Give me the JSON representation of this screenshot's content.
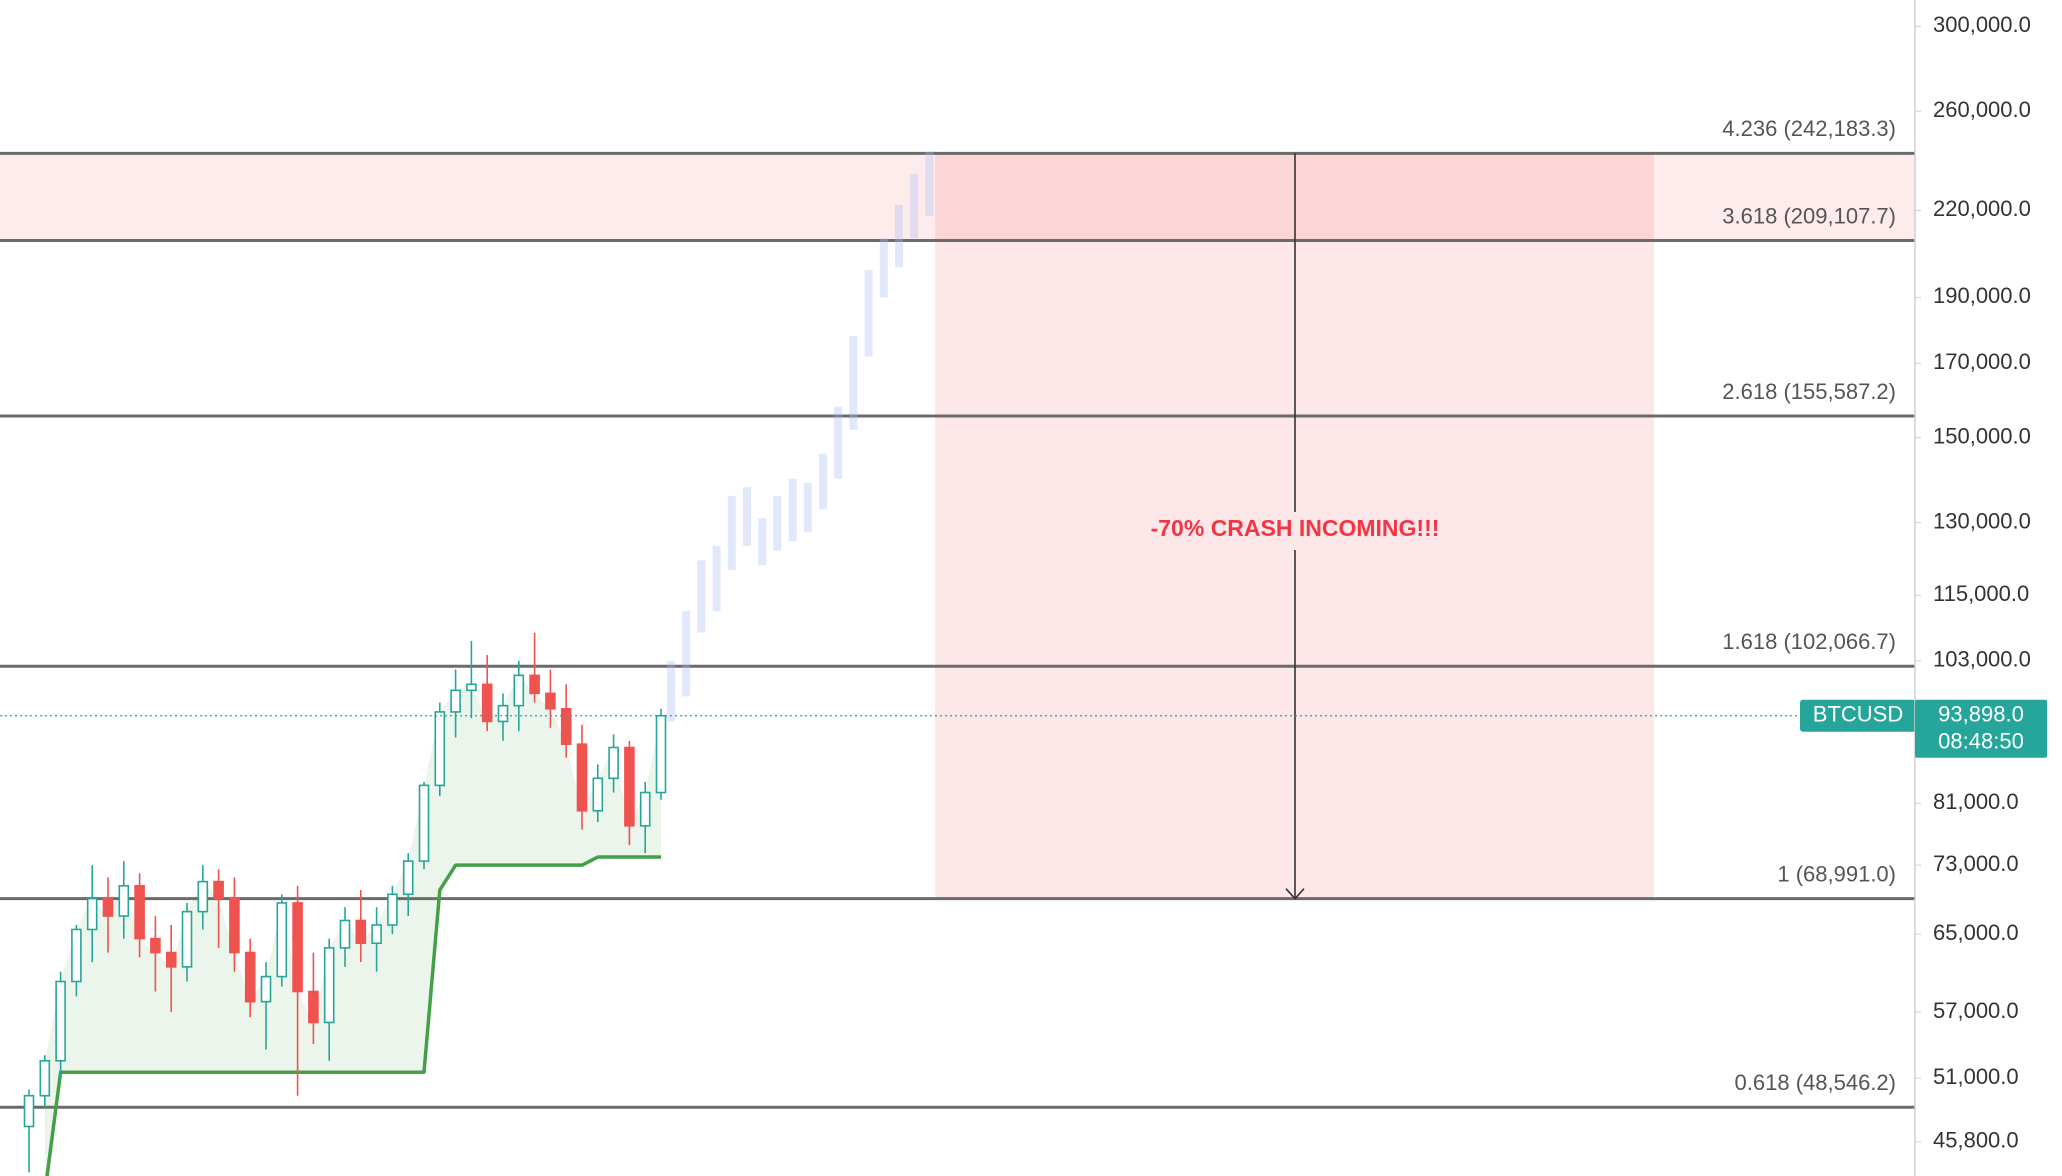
{
  "chart_data": {
    "type": "candlestick",
    "scale": "log",
    "symbol": "BTCUSD",
    "countdown": "08:48:50",
    "last_price": {
      "value": 93898.0,
      "label": "93,898.0"
    },
    "annotation": "-70% CRASH INCOMING!!!",
    "ylim": [
      43236,
      313600
    ],
    "yticks": [
      {
        "value": 300000,
        "label": "300,000.0"
      },
      {
        "value": 260000,
        "label": "260,000.0"
      },
      {
        "value": 220000,
        "label": "220,000.0"
      },
      {
        "value": 190000,
        "label": "190,000.0"
      },
      {
        "value": 170000,
        "label": "170,000.0"
      },
      {
        "value": 150000,
        "label": "150,000.0"
      },
      {
        "value": 130000,
        "label": "130,000.0"
      },
      {
        "value": 115000,
        "label": "115,000.0"
      },
      {
        "value": 103000,
        "label": "103,000.0"
      },
      {
        "value": 81000,
        "label": "81,000.0"
      },
      {
        "value": 73000,
        "label": "73,000.0"
      },
      {
        "value": 65000,
        "label": "65,000.0"
      },
      {
        "value": 57000,
        "label": "57,000.0"
      },
      {
        "value": 51000,
        "label": "51,000.0"
      },
      {
        "value": 45800,
        "label": "45,800.0"
      }
    ],
    "fib_levels": [
      {
        "value": 242183.3,
        "label": "4.236 (242,183.3)"
      },
      {
        "value": 209107.7,
        "label": "3.618 (209,107.7)"
      },
      {
        "value": 155587.2,
        "label": "2.618 (155,587.2)"
      },
      {
        "value": 102066.7,
        "label": "1.618 (102,066.7)"
      },
      {
        "value": 68991.0,
        "label": "1 (68,991.0)"
      },
      {
        "value": 48546.2,
        "label": "0.618 (48,546.2)"
      }
    ],
    "up_color": "#26a69a",
    "down_color": "#ef5350",
    "candles": {
      "open": [
        47000,
        49500,
        52500,
        60000,
        65500,
        69000,
        67000,
        70500,
        64500,
        63000,
        61500,
        67500,
        71000,
        69000,
        63000,
        58000,
        60500,
        68500,
        59000,
        56000,
        63500,
        66500,
        64000,
        66000,
        69500,
        73500,
        83500,
        94500,
        98000,
        99000,
        93000,
        95500,
        100500,
        97500,
        95000,
        89500,
        80000,
        84500,
        89000,
        78000,
        82500
      ],
      "high": [
        50000,
        53000,
        61000,
        66000,
        73000,
        71500,
        73500,
        72000,
        67000,
        66000,
        68500,
        73000,
        72500,
        71500,
        64500,
        62000,
        69500,
        70500,
        63000,
        64500,
        68000,
        70000,
        68000,
        70500,
        74500,
        84000,
        96000,
        101500,
        106500,
        104000,
        97500,
        103000,
        108000,
        101500,
        99000,
        92500,
        86500,
        91000,
        90000,
        84000,
        95000
      ],
      "low": [
        43500,
        48500,
        51000,
        58500,
        62000,
        63000,
        64500,
        62500,
        59000,
        57000,
        60000,
        65500,
        63500,
        61000,
        56500,
        53500,
        59500,
        49500,
        54000,
        52500,
        61500,
        62000,
        61000,
        65000,
        67000,
        72500,
        82000,
        90500,
        93500,
        91500,
        90000,
        91500,
        96000,
        92000,
        87500,
        77500,
        78500,
        82500,
        75500,
        74500,
        81500
      ],
      "close": [
        49500,
        52500,
        60000,
        65500,
        69000,
        67000,
        70500,
        64500,
        63000,
        61500,
        67500,
        71000,
        69000,
        63000,
        58000,
        60500,
        68500,
        59000,
        56000,
        63500,
        66500,
        64000,
        66000,
        69500,
        73500,
        83500,
        94500,
        98000,
        99000,
        93000,
        95500,
        100500,
        97500,
        95000,
        89500,
        80000,
        84500,
        89000,
        78000,
        82500,
        93898.0
      ]
    },
    "support": {
      "color": "#43a047",
      "values": [
        null,
        42000,
        51500,
        51500,
        51500,
        51500,
        51500,
        51500,
        51500,
        51500,
        51500,
        51500,
        51500,
        51500,
        51500,
        51500,
        51500,
        51500,
        51500,
        51500,
        51500,
        51500,
        51500,
        51500,
        51500,
        51500,
        70000,
        73000,
        73000,
        73000,
        73000,
        73000,
        73000,
        73000,
        73000,
        73000,
        74000,
        74000,
        74000,
        74000,
        74000
      ]
    },
    "projection": {
      "color": "#aabcf5",
      "high": [
        103000,
        112000,
        122000,
        125000,
        136000,
        138000,
        131000,
        136000,
        140000,
        139000,
        146000,
        158000,
        178000,
        199000,
        210000,
        222000,
        234000,
        243000
      ],
      "low": [
        93000,
        97000,
        108000,
        112000,
        120000,
        125000,
        121000,
        124000,
        126000,
        128000,
        133000,
        140000,
        152000,
        172000,
        190000,
        200000,
        210000,
        218000
      ]
    }
  }
}
